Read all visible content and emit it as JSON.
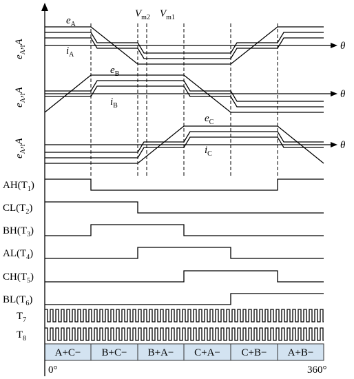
{
  "y_axis_labels": [
    [
      "e",
      "A",
      ",",
      "i",
      "A"
    ],
    [
      "e",
      "A",
      ",",
      "i",
      "A"
    ],
    [
      "e",
      "A",
      ",",
      "i",
      "A"
    ]
  ],
  "theta_labels": [
    "θ",
    "θ",
    "θ"
  ],
  "wave_labels": [
    [
      "e",
      "A"
    ],
    [
      "i",
      "A"
    ],
    [
      "e",
      "B"
    ],
    [
      "i",
      "B"
    ],
    [
      "e",
      "C"
    ],
    [
      "i",
      "C"
    ]
  ],
  "markers": [
    [
      "V",
      "m2"
    ],
    [
      "V",
      "m1"
    ]
  ],
  "signals": [
    [
      "AH(T",
      "1",
      ")"
    ],
    [
      "CL(T",
      "2",
      ")"
    ],
    [
      "BH(T",
      "3",
      ")"
    ],
    [
      "AL(T",
      "4",
      ")"
    ],
    [
      "CH(T",
      "5",
      ")"
    ],
    [
      "BL(T",
      "6",
      ")"
    ],
    [
      "T",
      "7"
    ],
    [
      "T",
      "8"
    ]
  ],
  "sectors": [
    "A+C−",
    "B+C−",
    "B+A−",
    "C+A−",
    "C+B−",
    "A+B−"
  ],
  "angle_start": "0°",
  "angle_end": "360°"
}
